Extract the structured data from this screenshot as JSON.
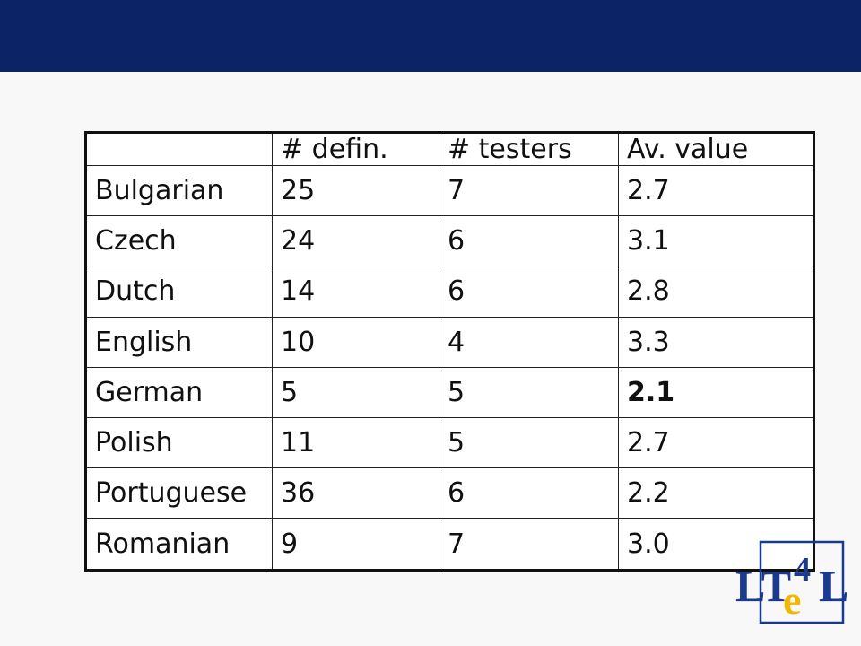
{
  "table": {
    "headers": [
      "",
      "# defin.",
      "# testers",
      "Av. value"
    ],
    "rows": [
      {
        "language": "Bulgarian",
        "definitions": "25",
        "testers": "7",
        "avg_value": "2.7"
      },
      {
        "language": "Czech",
        "definitions": "24",
        "testers": "6",
        "avg_value": "3.1"
      },
      {
        "language": "Dutch",
        "definitions": "14",
        "testers": "6",
        "avg_value": "2.8"
      },
      {
        "language": "English",
        "definitions": "10",
        "testers": "4",
        "avg_value": "3.3"
      },
      {
        "language": "German",
        "definitions": "5",
        "testers": "5",
        "avg_value": "2.1"
      },
      {
        "language": "Polish",
        "definitions": "11",
        "testers": "5",
        "avg_value": "2.7"
      },
      {
        "language": "Portuguese",
        "definitions": "36",
        "testers": "6",
        "avg_value": "2.2"
      },
      {
        "language": "Romanian",
        "definitions": "9",
        "testers": "7",
        "avg_value": "3.0"
      }
    ]
  },
  "logo": {
    "text": "LT4eL"
  },
  "colors": {
    "header_bar": "#0c2466",
    "logo_blue": "#1a3a8f",
    "logo_yellow": "#f2b800"
  }
}
